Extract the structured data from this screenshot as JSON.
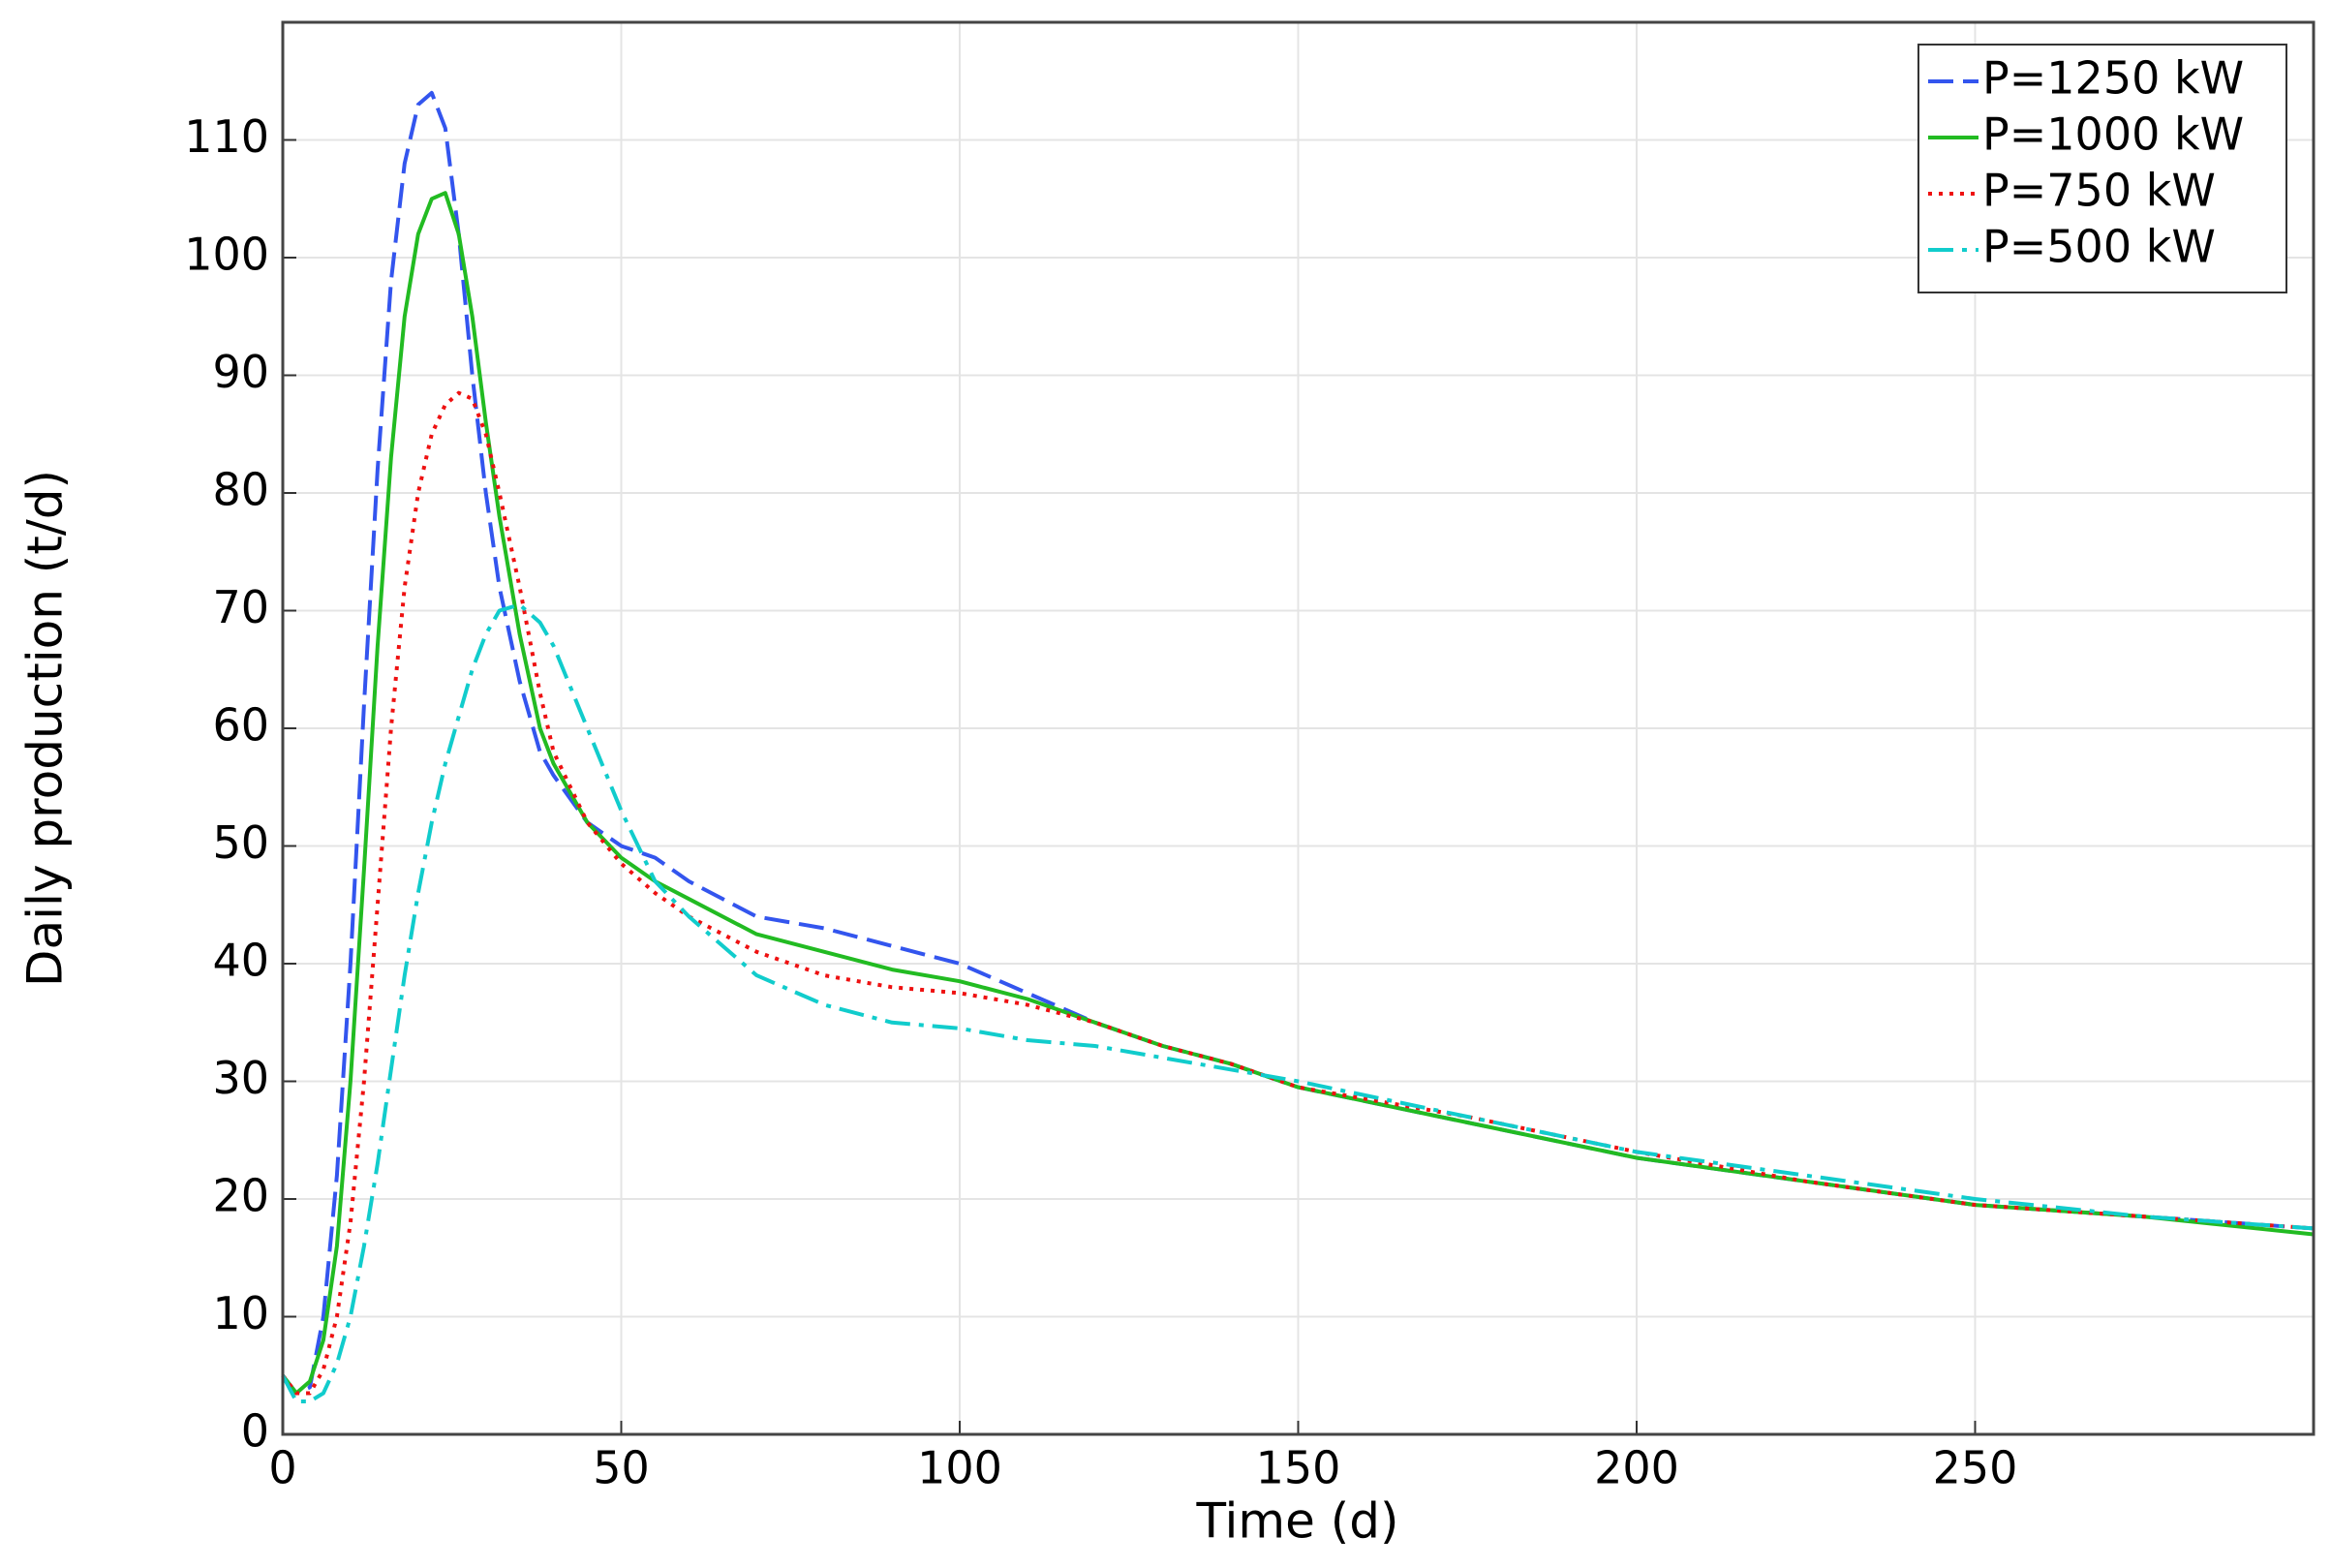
{
  "chart_data": {
    "type": "line",
    "x_label": "Time (d)",
    "y_label": "Daily production (t/d)",
    "x": [
      0,
      2,
      4,
      6,
      8,
      10,
      12,
      14,
      16,
      18,
      20,
      22,
      24,
      26,
      28,
      30,
      32,
      35,
      38,
      40,
      45,
      50,
      55,
      60,
      70,
      80,
      90,
      100,
      110,
      120,
      130,
      140,
      150,
      175,
      200,
      225,
      250,
      275,
      300
    ],
    "series": [
      {
        "name": "P=1250 kW",
        "color": "#3355ee",
        "dash": "dashed",
        "values": [
          5,
          3.5,
          4,
          10,
          22,
          40,
          62,
          82,
          98,
          108,
          113,
          114,
          111,
          102,
          90,
          80,
          72,
          64,
          58,
          56,
          52,
          50,
          49,
          47,
          44,
          43,
          41.5,
          40,
          37.5,
          35,
          33,
          31.5,
          29.5,
          26.5,
          23.5,
          21.5,
          19.5,
          18.5,
          17.5
        ]
      },
      {
        "name": "P=1000 kW",
        "color": "#22bb22",
        "dash": "solid",
        "values": [
          5,
          3.5,
          4.5,
          8,
          16,
          30,
          48,
          67,
          83,
          95,
          102,
          105,
          105.5,
          102,
          95,
          86,
          78,
          68,
          60,
          57,
          52,
          49,
          47,
          45.5,
          42.5,
          41,
          39.5,
          38.5,
          37,
          35,
          33,
          31.5,
          29.5,
          26.5,
          23.5,
          21.5,
          19.5,
          18.5,
          17
        ]
      },
      {
        "name": "P=750 kW",
        "color": "#ee1111",
        "dash": "dotted",
        "values": [
          5,
          3.5,
          3.5,
          5.5,
          10,
          18,
          30,
          45,
          60,
          72,
          80,
          85,
          87.5,
          88.5,
          88,
          85,
          80,
          72,
          63,
          58,
          52,
          48.5,
          46,
          44,
          41,
          39,
          38,
          37.5,
          36.5,
          35,
          33,
          31.5,
          29.5,
          27,
          24,
          21.5,
          19.5,
          18.5,
          17.5
        ]
      },
      {
        "name": "P=500 kW",
        "color": "#11cccc",
        "dash": "dashdot",
        "values": [
          5,
          2.8,
          2.8,
          3.5,
          6,
          10,
          16,
          23,
          31,
          39,
          46,
          52,
          57,
          61,
          65,
          68,
          70,
          70.5,
          69,
          67,
          60,
          53,
          47,
          44,
          39,
          36.5,
          35,
          34.5,
          33.5,
          33,
          32,
          31,
          30,
          27,
          24,
          22,
          20,
          18.5,
          17.5
        ]
      }
    ],
    "xlim": [
      0,
      300
    ],
    "ylim": [
      0,
      120
    ],
    "xticks": [
      0,
      50,
      100,
      150,
      200,
      250
    ],
    "yticks": [
      0,
      10,
      20,
      30,
      40,
      50,
      60,
      70,
      80,
      90,
      100,
      110
    ],
    "grid": true,
    "legend": "upper right"
  }
}
